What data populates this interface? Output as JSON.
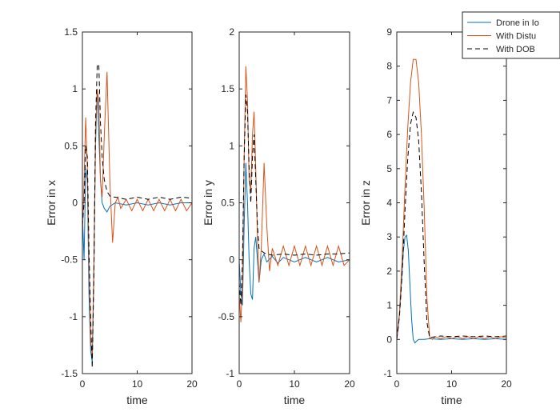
{
  "colors": {
    "series1": "#0072BD",
    "series2": "#D95319",
    "series3": "#000000",
    "axis": "#262626",
    "background": "#ffffff"
  },
  "legend": {
    "placement": "top-right",
    "entries": [
      "Drone in Io",
      "With Distu",
      "With DOB"
    ]
  },
  "chart_data": [
    {
      "type": "line",
      "title": "",
      "xlabel": "time",
      "ylabel": "Error in x",
      "xlim": [
        0,
        20
      ],
      "ylim": [
        -1.5,
        1.5
      ],
      "xticks": [
        0,
        10,
        20
      ],
      "yticks": [
        -1.5,
        -1,
        -0.5,
        0,
        0.5,
        1,
        1.5
      ],
      "xtick_labels": [
        "0",
        "10",
        "20"
      ],
      "ytick_labels": [
        "-1.5",
        "-1",
        "-0.5",
        "0",
        "0.5",
        "1",
        "1.5"
      ],
      "series": [
        {
          "name": "Drone in Io",
          "x": [
            0,
            0.3,
            0.6,
            0.9,
            1.2,
            1.5,
            1.8,
            2.1,
            2.4,
            2.7,
            3.0,
            3.3,
            3.6,
            4.0,
            4.5,
            5.0,
            6.0,
            8.0,
            10.0,
            12.0,
            14.0,
            16.0,
            18.0,
            20.0
          ],
          "y": [
            -0.1,
            -0.5,
            0.3,
            0.2,
            -0.8,
            -1.3,
            -1.4,
            -0.6,
            0.5,
            1.0,
            0.6,
            0.2,
            0.0,
            -0.05,
            -0.08,
            -0.03,
            0.0,
            -0.02,
            0.0,
            -0.02,
            0.0,
            -0.02,
            0.0,
            0.0
          ]
        },
        {
          "name": "With Distu",
          "x": [
            0,
            0.3,
            0.6,
            0.9,
            1.2,
            1.5,
            1.8,
            2.1,
            2.4,
            2.7,
            3.0,
            3.3,
            3.6,
            4.0,
            4.5,
            5.0,
            5.5,
            6.0,
            6.5,
            7.0,
            8.0,
            9.0,
            10.0,
            11.0,
            12.0,
            13.0,
            14.0,
            15.0,
            16.0,
            17.0,
            18.0,
            19.0,
            20.0
          ],
          "y": [
            -0.3,
            0.2,
            0.75,
            0.3,
            -0.5,
            -1.2,
            -1.35,
            -0.5,
            0.6,
            1.0,
            0.9,
            0.2,
            0.05,
            0.6,
            1.15,
            0.2,
            -0.35,
            0.0,
            0.05,
            -0.05,
            0.03,
            -0.07,
            0.03,
            -0.07,
            0.03,
            -0.07,
            0.03,
            -0.07,
            0.03,
            -0.07,
            0.03,
            -0.07,
            0.0
          ]
        },
        {
          "name": "With DOB",
          "x": [
            0,
            0.3,
            0.6,
            0.9,
            1.2,
            1.5,
            1.8,
            2.1,
            2.4,
            2.7,
            3.0,
            3.3,
            3.6,
            4.0,
            4.5,
            5.0,
            5.5,
            6.0,
            8.0,
            10.0,
            12.0,
            14.0,
            16.0,
            18.0,
            20.0
          ],
          "y": [
            -0.2,
            0.0,
            0.5,
            0.4,
            -0.4,
            -1.0,
            -1.45,
            -0.6,
            0.7,
            1.2,
            1.22,
            0.7,
            0.4,
            0.2,
            0.1,
            0.06,
            0.05,
            0.05,
            0.03,
            0.05,
            0.03,
            0.05,
            0.03,
            0.05,
            0.04
          ]
        }
      ]
    },
    {
      "type": "line",
      "title": "",
      "xlabel": "time",
      "ylabel": "Error in y",
      "xlim": [
        0,
        20
      ],
      "ylim": [
        -1,
        2
      ],
      "xticks": [
        0,
        10,
        20
      ],
      "yticks": [
        -1,
        -0.5,
        0,
        0.5,
        1,
        1.5,
        2
      ],
      "xtick_labels": [
        "0",
        "10",
        "20"
      ],
      "ytick_labels": [
        "-1",
        "-0.5",
        "0",
        "0.5",
        "1",
        "1.5",
        "2"
      ],
      "series": [
        {
          "name": "Drone in Io",
          "x": [
            0,
            0.3,
            0.6,
            0.9,
            1.2,
            1.5,
            1.8,
            2.1,
            2.4,
            2.7,
            3.0,
            3.3,
            3.6,
            4.0,
            4.5,
            5.0,
            6.0,
            7.0,
            8.0,
            10.0,
            12.0,
            14.0,
            16.0,
            18.0,
            20.0
          ],
          "y": [
            0.0,
            -0.3,
            -0.4,
            0.3,
            0.85,
            0.5,
            0.0,
            -0.3,
            -0.35,
            0.1,
            0.2,
            0.0,
            -0.2,
            0.0,
            0.05,
            -0.02,
            0.03,
            -0.03,
            0.02,
            -0.02,
            0.02,
            -0.02,
            0.02,
            -0.02,
            0.0
          ]
        },
        {
          "name": "With Distu",
          "x": [
            0,
            0.3,
            0.6,
            0.9,
            1.2,
            1.5,
            1.8,
            2.1,
            2.4,
            2.7,
            3.0,
            3.3,
            3.6,
            4.0,
            4.5,
            5.0,
            5.5,
            6.0,
            7.0,
            8.0,
            9.0,
            10.0,
            11.0,
            12.0,
            13.0,
            14.0,
            15.0,
            16.0,
            17.0,
            18.0,
            19.0,
            20.0
          ],
          "y": [
            -0.3,
            -0.55,
            -0.2,
            0.9,
            1.7,
            1.4,
            0.7,
            0.6,
            1.1,
            1.3,
            0.8,
            0.2,
            -0.2,
            0.1,
            0.85,
            0.3,
            -0.1,
            0.1,
            -0.05,
            0.12,
            -0.05,
            0.12,
            -0.05,
            0.12,
            -0.05,
            0.12,
            -0.05,
            0.12,
            -0.05,
            0.12,
            -0.05,
            0.0
          ]
        },
        {
          "name": "With DOB",
          "x": [
            0,
            0.3,
            0.6,
            0.9,
            1.2,
            1.5,
            1.8,
            2.1,
            2.4,
            2.7,
            3.0,
            3.3,
            3.6,
            4.0,
            4.5,
            5.0,
            6.0,
            8.0,
            10.0,
            12.0,
            14.0,
            16.0,
            18.0,
            20.0
          ],
          "y": [
            -0.2,
            -0.4,
            0.0,
            0.9,
            1.45,
            1.3,
            0.8,
            0.5,
            0.9,
            1.1,
            0.7,
            0.3,
            0.1,
            0.08,
            0.06,
            0.05,
            0.04,
            0.05,
            0.04,
            0.05,
            0.04,
            0.05,
            0.05,
            0.06
          ]
        }
      ]
    },
    {
      "type": "line",
      "title": "",
      "xlabel": "time",
      "ylabel": "Error in z",
      "xlim": [
        0,
        20
      ],
      "ylim": [
        -1,
        9
      ],
      "xticks": [
        0,
        10,
        20
      ],
      "yticks": [
        -1,
        0,
        1,
        2,
        3,
        4,
        5,
        6,
        7,
        8,
        9
      ],
      "xtick_labels": [
        "0",
        "10",
        "20"
      ],
      "ytick_labels": [
        "-1",
        "0",
        "1",
        "2",
        "3",
        "4",
        "5",
        "6",
        "7",
        "8",
        "9"
      ],
      "series": [
        {
          "name": "Drone in Io",
          "x": [
            0,
            0.3,
            0.6,
            0.9,
            1.2,
            1.5,
            1.8,
            2.1,
            2.4,
            2.7,
            3.0,
            3.3,
            3.6,
            4.0,
            5.0,
            6.0,
            8.0,
            10.0,
            12.0,
            14.0,
            16.0,
            18.0,
            20.0
          ],
          "y": [
            0.0,
            0.4,
            1.0,
            1.8,
            2.6,
            3.0,
            3.05,
            2.6,
            1.6,
            0.6,
            0.0,
            -0.1,
            -0.05,
            0.0,
            0.0,
            0.02,
            0.0,
            0.02,
            0.0,
            0.02,
            0.0,
            0.02,
            0.0
          ]
        },
        {
          "name": "With Distu",
          "x": [
            0,
            0.5,
            1.0,
            1.5,
            2.0,
            2.5,
            3.0,
            3.5,
            4.0,
            4.5,
            5.0,
            5.5,
            6.0,
            6.5,
            7.0,
            8.0,
            9.0,
            10.0,
            11.0,
            12.0,
            13.0,
            14.0,
            15.0,
            16.0,
            17.0,
            18.0,
            19.0,
            20.0
          ],
          "y": [
            0.0,
            0.8,
            2.5,
            4.5,
            6.2,
            7.5,
            8.2,
            8.2,
            7.5,
            6.0,
            3.8,
            1.2,
            0.05,
            0.0,
            0.08,
            0.02,
            0.08,
            0.02,
            0.08,
            0.02,
            0.08,
            0.02,
            0.08,
            0.02,
            0.08,
            0.02,
            0.08,
            0.05
          ]
        },
        {
          "name": "With DOB",
          "x": [
            0,
            0.5,
            1.0,
            1.5,
            2.0,
            2.5,
            3.0,
            3.5,
            4.0,
            4.5,
            5.0,
            5.5,
            6.0,
            7.0,
            8.0,
            10.0,
            12.0,
            14.0,
            16.0,
            18.0,
            20.0
          ],
          "y": [
            0.0,
            0.7,
            2.0,
            3.8,
            5.3,
            6.3,
            6.65,
            6.5,
            5.8,
            4.3,
            2.2,
            0.5,
            0.05,
            0.08,
            0.1,
            0.08,
            0.1,
            0.08,
            0.1,
            0.08,
            0.1
          ]
        }
      ]
    }
  ]
}
